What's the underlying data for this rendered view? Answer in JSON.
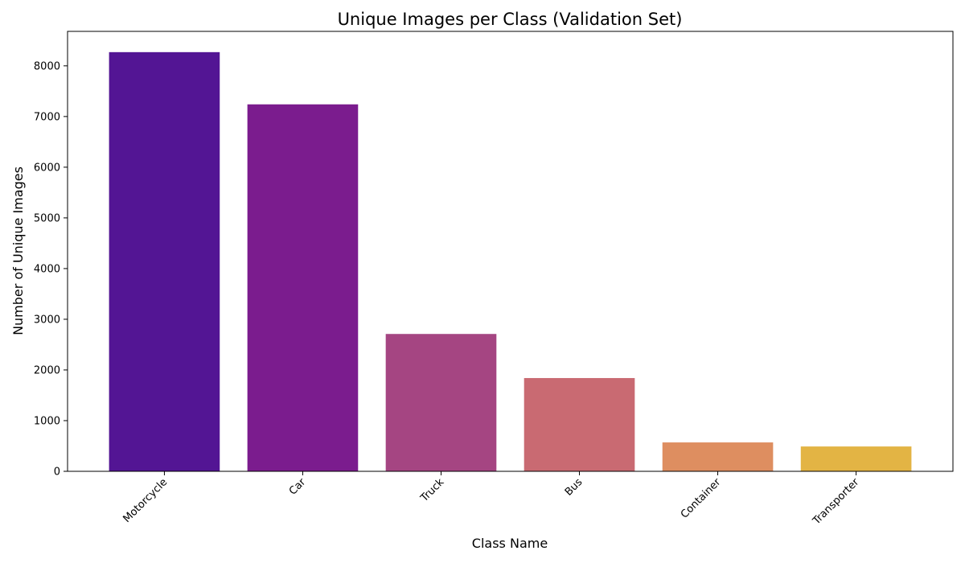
{
  "chart_data": {
    "type": "bar",
    "title": "Unique Images per Class (Validation Set)",
    "xlabel": "Class Name",
    "ylabel": "Number of Unique Images",
    "categories": [
      "Motorcycle",
      "Car",
      "Truck",
      "Bus",
      "Container",
      "Transporter"
    ],
    "values": [
      8270,
      7240,
      2710,
      1840,
      570,
      490
    ],
    "colors": [
      "#531594",
      "#7b1c8e",
      "#a54582",
      "#c96a72",
      "#de8e60",
      "#e3b444"
    ],
    "ylim": [
      0,
      8680
    ],
    "yticks": [
      0,
      1000,
      2000,
      3000,
      4000,
      5000,
      6000,
      7000,
      8000
    ],
    "grid": false,
    "legend": "none"
  }
}
